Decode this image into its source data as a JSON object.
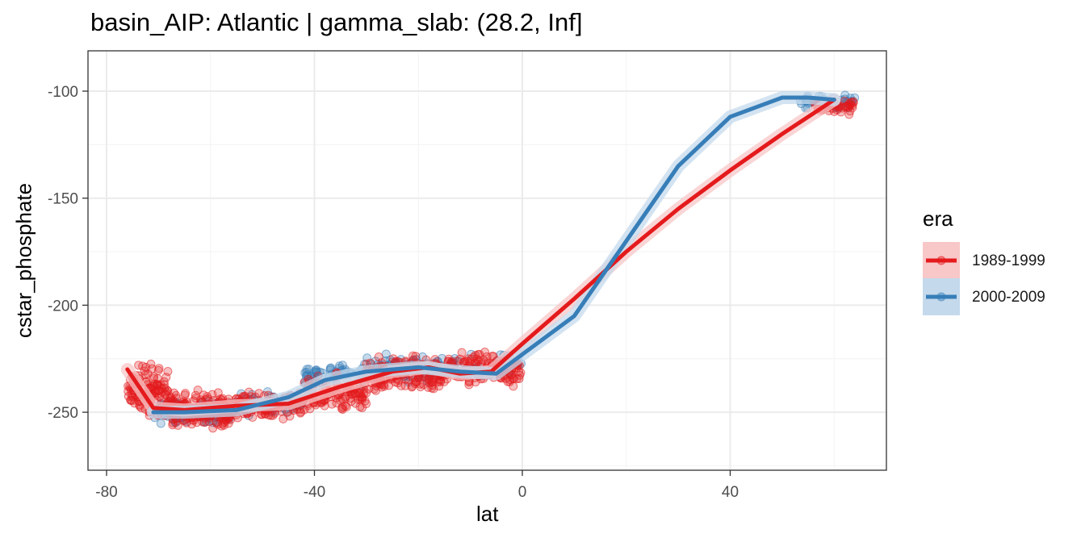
{
  "chart_data": {
    "type": "scatter",
    "title": "basin_AIP: Atlantic | gamma_slab:  (28.2, Inf]",
    "xlabel": "lat",
    "ylabel": "cstar_phosphate",
    "xlim": [
      -80.5,
      70.5
    ],
    "ylim": [
      -277,
      -81
    ],
    "x_ticks": [
      -80,
      -40,
      0,
      40
    ],
    "x_tick_labels": [
      "-80",
      "-40",
      "0",
      "40"
    ],
    "y_ticks": [
      -100,
      -150,
      -200,
      -250
    ],
    "y_tick_labels": [
      "-100",
      "-150",
      "-200",
      "-250"
    ],
    "grid": true,
    "legend": {
      "title": "era",
      "position": "right"
    },
    "series": [
      {
        "name": "1989-1999",
        "color": "#E41A1C",
        "smooth": {
          "x": [
            -76,
            -71,
            -65,
            -55,
            -45,
            -35,
            -25,
            -18,
            -12,
            -6,
            0,
            10,
            20,
            30,
            40,
            50,
            60
          ],
          "y": [
            -230,
            -248,
            -249,
            -247,
            -246,
            -238,
            -231,
            -229,
            -232,
            -231,
            -218,
            -197,
            -175,
            -155,
            -137,
            -120,
            -104
          ]
        },
        "points": [
          {
            "x0": -76,
            "x1": -68,
            "y": -240,
            "spread": 16,
            "n": 120
          },
          {
            "x0": -68,
            "x1": -56,
            "y": -250,
            "spread": 12,
            "n": 170
          },
          {
            "x0": -56,
            "x1": -42,
            "y": -247,
            "spread": 9,
            "n": 120
          },
          {
            "x0": -42,
            "x1": -30,
            "y": -242,
            "spread": 12,
            "n": 110
          },
          {
            "x0": -30,
            "x1": -15,
            "y": -232,
            "spread": 11,
            "n": 150
          },
          {
            "x0": -15,
            "x1": 0,
            "y": -230,
            "spread": 11,
            "n": 140
          },
          {
            "x0": 56,
            "x1": 64,
            "y": -107,
            "spread": 5,
            "n": 45
          }
        ]
      },
      {
        "name": "2000-2009",
        "color": "#377EB8",
        "smooth": {
          "x": [
            -71,
            -65,
            -55,
            -45,
            -38,
            -30,
            -20,
            -12,
            -5,
            0,
            10,
            20,
            30,
            40,
            50,
            55,
            60
          ],
          "y": [
            -250,
            -250,
            -249,
            -243,
            -235,
            -231,
            -229,
            -231,
            -232,
            -223,
            -205,
            -170,
            -135,
            -112,
            -103,
            -103,
            -104
          ]
        },
        "points": [
          {
            "x0": -71,
            "x1": -56,
            "y": -250,
            "spread": 7,
            "n": 110
          },
          {
            "x0": -56,
            "x1": -42,
            "y": -246,
            "spread": 7,
            "n": 70
          },
          {
            "x0": -42,
            "x1": -30,
            "y": -232,
            "spread": 7,
            "n": 60
          },
          {
            "x0": -30,
            "x1": -15,
            "y": -229,
            "spread": 8,
            "n": 70
          },
          {
            "x0": -15,
            "x1": 0,
            "y": -228,
            "spread": 8,
            "n": 50
          },
          {
            "x0": 53,
            "x1": 64,
            "y": -105,
            "spread": 4,
            "n": 50
          }
        ]
      }
    ]
  }
}
